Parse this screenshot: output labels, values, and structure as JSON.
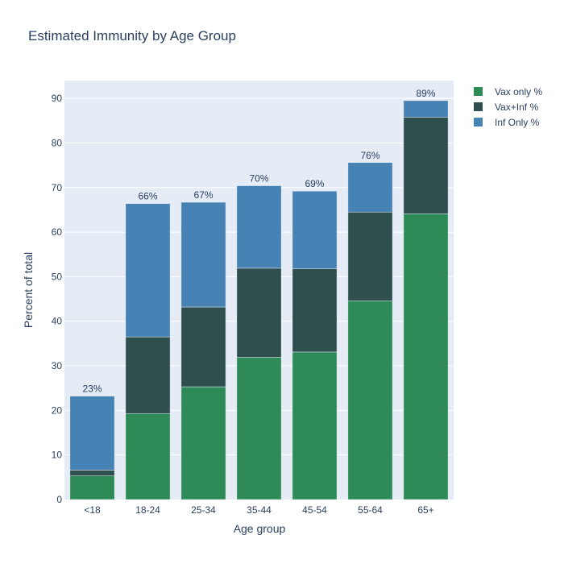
{
  "chart_data": {
    "type": "bar",
    "barmode": "stack",
    "title": "Estimated Immunity by Age Group",
    "xlabel": "Age group",
    "ylabel": "Percent of total",
    "ylim": [
      0,
      94
    ],
    "yticks": [
      0,
      10,
      20,
      30,
      40,
      50,
      60,
      70,
      80,
      90
    ],
    "grid": true,
    "legend_position": "top-right",
    "categories": [
      "<18",
      "18-24",
      "25-34",
      "35-44",
      "45-54",
      "55-64",
      "65+"
    ],
    "series": [
      {
        "name": "Vax only %",
        "color": "#2e8b57",
        "values": [
          5.3,
          19.3,
          25.3,
          31.9,
          33.1,
          44.6,
          64.1
        ]
      },
      {
        "name": "Vax+Inf %",
        "color": "#2f4f4f",
        "values": [
          1.3,
          17.2,
          17.9,
          20.0,
          18.7,
          19.9,
          21.7
        ]
      },
      {
        "name": "Inf Only %",
        "color": "#4682b4",
        "values": [
          16.6,
          29.9,
          23.5,
          18.5,
          17.4,
          11.1,
          3.7
        ]
      }
    ],
    "total_labels": [
      "23%",
      "66%",
      "67%",
      "70%",
      "69%",
      "76%",
      "89%"
    ]
  },
  "colors": {
    "plot_background": "#e5ecf6",
    "text": "#2a3f5f",
    "grid": "#ffffff"
  }
}
